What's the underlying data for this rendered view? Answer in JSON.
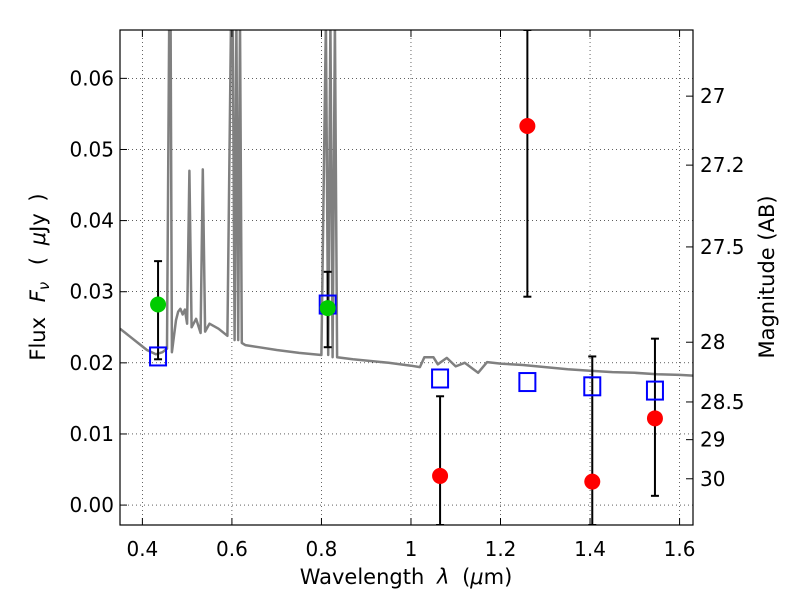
{
  "chart_data": {
    "type": "scatter",
    "xlabel_parts": [
      "Wavelength",
      "λ",
      "(",
      "μ",
      "m)"
    ],
    "ylabel_parts": [
      "Flux",
      "F",
      "ν",
      "(",
      "μ",
      "Jy",
      ")"
    ],
    "y2label": "Magnitude (AB)",
    "xlim": [
      0.35,
      1.63
    ],
    "ylim": [
      -0.0028,
      0.0668
    ],
    "xticks": [
      {
        "v": 0.4,
        "label": "0.4"
      },
      {
        "v": 0.6,
        "label": "0.6"
      },
      {
        "v": 0.8,
        "label": "0.8"
      },
      {
        "v": 1.0,
        "label": "1"
      },
      {
        "v": 1.2,
        "label": "1.2"
      },
      {
        "v": 1.4,
        "label": "1.4"
      },
      {
        "v": 1.6,
        "label": "1.6"
      }
    ],
    "yticks": [
      {
        "v": 0.0,
        "label": "0.00"
      },
      {
        "v": 0.01,
        "label": "0.01"
      },
      {
        "v": 0.02,
        "label": "0.02"
      },
      {
        "v": 0.03,
        "label": "0.03"
      },
      {
        "v": 0.04,
        "label": "0.04"
      },
      {
        "v": 0.05,
        "label": "0.05"
      },
      {
        "v": 0.06,
        "label": "0.06"
      }
    ],
    "y2ticks": [
      {
        "flux": 0.0575,
        "label": "27"
      },
      {
        "flux": 0.0478,
        "label": "27.2"
      },
      {
        "flux": 0.0363,
        "label": "27.5"
      },
      {
        "flux": 0.0229,
        "label": "28"
      },
      {
        "flux": 0.0145,
        "label": "28.5"
      },
      {
        "flux": 0.0092,
        "label": "29"
      },
      {
        "flux": 0.0037,
        "label": "30"
      }
    ],
    "colors": {
      "model": "#808080",
      "detection": "#00cc00",
      "upper_limit": "#ff0000",
      "model_photometry": "#0000ff",
      "errorbar": "#000000",
      "grid": "#000000"
    },
    "model_spectrum": [
      [
        0.35,
        0.0248
      ],
      [
        0.37,
        0.0238
      ],
      [
        0.39,
        0.0228
      ],
      [
        0.41,
        0.0218
      ],
      [
        0.43,
        0.0212
      ],
      [
        0.445,
        0.0215
      ],
      [
        0.455,
        0.022
      ],
      [
        0.46,
        0.068
      ],
      [
        0.463,
        0.068
      ],
      [
        0.466,
        0.0215
      ],
      [
        0.475,
        0.026
      ],
      [
        0.48,
        0.0272
      ],
      [
        0.485,
        0.0276
      ],
      [
        0.49,
        0.0268
      ],
      [
        0.495,
        0.0275
      ],
      [
        0.5,
        0.0255
      ],
      [
        0.505,
        0.047
      ],
      [
        0.51,
        0.025
      ],
      [
        0.52,
        0.0262
      ],
      [
        0.53,
        0.0242
      ],
      [
        0.535,
        0.0472
      ],
      [
        0.54,
        0.0244
      ],
      [
        0.55,
        0.0255
      ],
      [
        0.57,
        0.0248
      ],
      [
        0.59,
        0.0238
      ],
      [
        0.598,
        0.068
      ],
      [
        0.602,
        0.068
      ],
      [
        0.606,
        0.0232
      ],
      [
        0.61,
        0.068
      ],
      [
        0.614,
        0.0232
      ],
      [
        0.618,
        0.068
      ],
      [
        0.622,
        0.0228
      ],
      [
        0.63,
        0.0225
      ],
      [
        0.66,
        0.0222
      ],
      [
        0.7,
        0.0218
      ],
      [
        0.75,
        0.0214
      ],
      [
        0.8,
        0.0211
      ],
      [
        0.81,
        0.068
      ],
      [
        0.815,
        0.0211
      ],
      [
        0.82,
        0.068
      ],
      [
        0.825,
        0.0208
      ],
      [
        0.83,
        0.068
      ],
      [
        0.835,
        0.0208
      ],
      [
        0.87,
        0.0205
      ],
      [
        0.95,
        0.02
      ],
      [
        1.0,
        0.0196
      ],
      [
        1.02,
        0.0194
      ],
      [
        1.03,
        0.0208
      ],
      [
        1.05,
        0.0208
      ],
      [
        1.06,
        0.0198
      ],
      [
        1.08,
        0.0207
      ],
      [
        1.1,
        0.0195
      ],
      [
        1.12,
        0.02
      ],
      [
        1.15,
        0.0186
      ],
      [
        1.17,
        0.0201
      ],
      [
        1.2,
        0.0199
      ],
      [
        1.25,
        0.0197
      ],
      [
        1.3,
        0.0194
      ],
      [
        1.35,
        0.0191
      ],
      [
        1.4,
        0.0189
      ],
      [
        1.45,
        0.0187
      ],
      [
        1.5,
        0.0186
      ],
      [
        1.55,
        0.0184
      ],
      [
        1.6,
        0.0183
      ],
      [
        1.63,
        0.0182
      ]
    ],
    "model_photometry": [
      {
        "x": 0.435,
        "y": 0.0209
      },
      {
        "x": 0.814,
        "y": 0.0282
      },
      {
        "x": 1.065,
        "y": 0.0178
      },
      {
        "x": 1.26,
        "y": 0.0173
      },
      {
        "x": 1.405,
        "y": 0.0167
      },
      {
        "x": 1.545,
        "y": 0.0161
      }
    ],
    "detections": [
      {
        "x": 0.435,
        "y": 0.0282,
        "ylo": 0.0205,
        "yhi": 0.0343
      },
      {
        "x": 0.814,
        "y": 0.0277,
        "ylo": 0.0222,
        "yhi": 0.0328
      }
    ],
    "upper_limits": [
      {
        "x": 1.065,
        "y": 0.0041,
        "ylo": -0.0028,
        "yhi": 0.0153
      },
      {
        "x": 1.26,
        "y": 0.0533,
        "ylo": 0.0293,
        "yhi": 0.0668
      },
      {
        "x": 1.405,
        "y": 0.0033,
        "ylo": -0.0028,
        "yhi": 0.0209
      },
      {
        "x": 1.545,
        "y": 0.0122,
        "ylo": 0.0013,
        "yhi": 0.0234
      }
    ]
  }
}
